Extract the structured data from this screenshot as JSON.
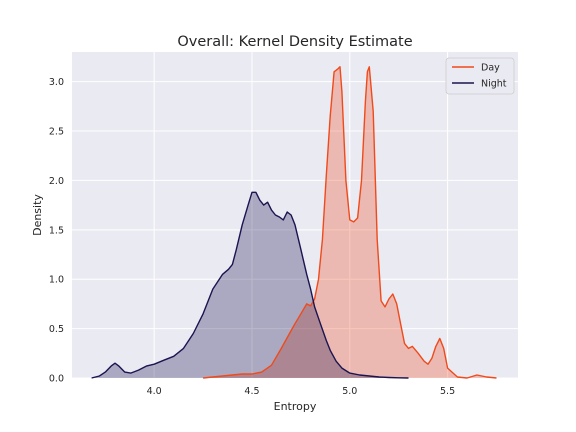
{
  "chart_data": {
    "type": "area",
    "title": "Overall: Kernel Density Estimate",
    "xlabel": "Entropy",
    "ylabel": "Density",
    "xlim": [
      3.58,
      5.86
    ],
    "ylim": [
      0,
      3.3
    ],
    "xticks": [
      4.0,
      4.5,
      5.0,
      5.5
    ],
    "xtick_labels": [
      "4.0",
      "4.5",
      "5.0",
      "5.5"
    ],
    "yticks": [
      0.0,
      0.5,
      1.0,
      1.5,
      2.0,
      2.5,
      3.0
    ],
    "ytick_labels": [
      "0.0",
      "0.5",
      "1.0",
      "1.5",
      "2.0",
      "2.5",
      "3.0"
    ],
    "grid": true,
    "legend_position": "top-right",
    "series": [
      {
        "name": "Day",
        "color": "#ef4a1b",
        "fill": "#efbcb0",
        "x": [
          4.25,
          4.3,
          4.35,
          4.4,
          4.45,
          4.5,
          4.55,
          4.6,
          4.65,
          4.7,
          4.72,
          4.75,
          4.78,
          4.8,
          4.82,
          4.84,
          4.86,
          4.88,
          4.9,
          4.92,
          4.94,
          4.95,
          4.96,
          4.98,
          5.0,
          5.02,
          5.04,
          5.06,
          5.08,
          5.09,
          5.1,
          5.12,
          5.14,
          5.16,
          5.18,
          5.2,
          5.22,
          5.24,
          5.26,
          5.28,
          5.3,
          5.32,
          5.35,
          5.38,
          5.4,
          5.42,
          5.44,
          5.46,
          5.48,
          5.5,
          5.55,
          5.6,
          5.65,
          5.7,
          5.75
        ],
        "y": [
          0.0,
          0.01,
          0.02,
          0.03,
          0.04,
          0.04,
          0.06,
          0.13,
          0.3,
          0.48,
          0.55,
          0.65,
          0.75,
          0.73,
          0.8,
          1.0,
          1.4,
          2.05,
          2.65,
          3.1,
          3.13,
          3.15,
          2.9,
          2.0,
          1.6,
          1.58,
          1.62,
          2.0,
          2.8,
          3.1,
          3.15,
          2.7,
          1.4,
          0.78,
          0.72,
          0.8,
          0.85,
          0.75,
          0.55,
          0.35,
          0.3,
          0.32,
          0.25,
          0.17,
          0.14,
          0.2,
          0.32,
          0.4,
          0.3,
          0.1,
          0.01,
          0.0,
          0.03,
          0.01,
          0.0
        ]
      },
      {
        "name": "Night",
        "color": "#1a1450",
        "fill": "#aeaec8",
        "x": [
          3.68,
          3.72,
          3.75,
          3.78,
          3.8,
          3.82,
          3.85,
          3.88,
          3.92,
          3.96,
          4.0,
          4.05,
          4.1,
          4.15,
          4.2,
          4.25,
          4.3,
          4.35,
          4.38,
          4.4,
          4.42,
          4.45,
          4.48,
          4.5,
          4.52,
          4.54,
          4.56,
          4.58,
          4.6,
          4.62,
          4.64,
          4.66,
          4.68,
          4.7,
          4.72,
          4.75,
          4.78,
          4.8,
          4.82,
          4.85,
          4.88,
          4.9,
          4.93,
          4.96,
          5.0,
          5.05,
          5.1,
          5.15,
          5.2,
          5.25,
          5.3
        ],
        "y": [
          0.0,
          0.02,
          0.06,
          0.12,
          0.15,
          0.12,
          0.06,
          0.05,
          0.08,
          0.12,
          0.14,
          0.18,
          0.22,
          0.3,
          0.45,
          0.65,
          0.9,
          1.05,
          1.1,
          1.15,
          1.3,
          1.55,
          1.75,
          1.88,
          1.88,
          1.8,
          1.75,
          1.78,
          1.7,
          1.65,
          1.63,
          1.6,
          1.68,
          1.65,
          1.55,
          1.3,
          1.05,
          0.9,
          0.72,
          0.55,
          0.38,
          0.28,
          0.17,
          0.1,
          0.05,
          0.03,
          0.02,
          0.01,
          0.005,
          0.002,
          0.0
        ]
      }
    ]
  }
}
